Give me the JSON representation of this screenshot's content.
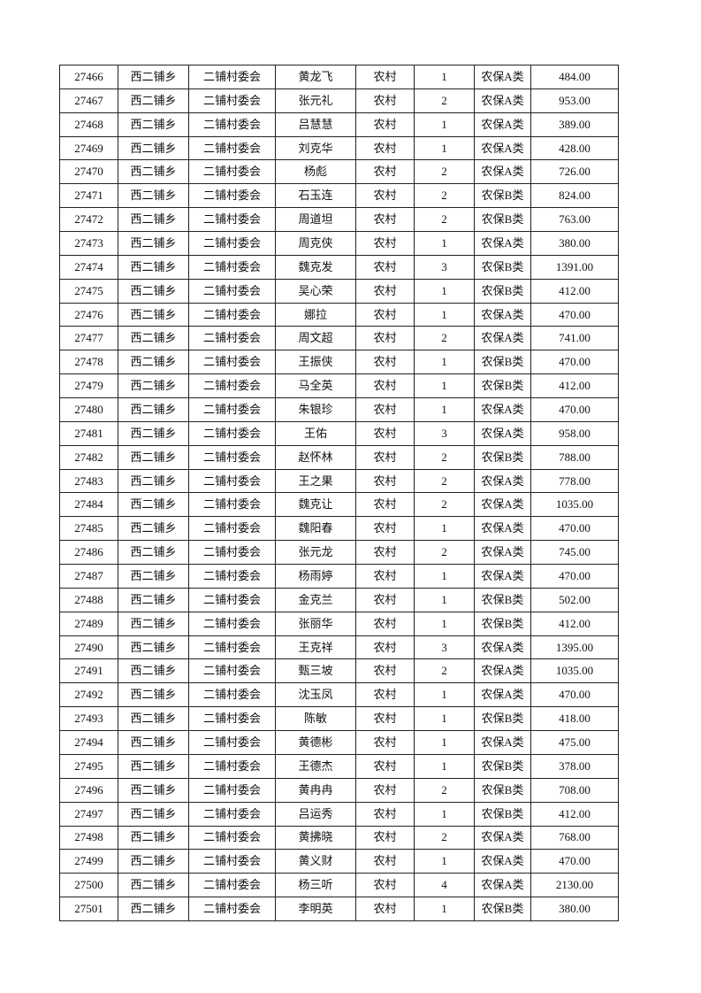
{
  "table": {
    "rows": [
      [
        "27466",
        "西二铺乡",
        "二铺村委会",
        "黄龙飞",
        "农村",
        "1",
        "农保A类",
        "484.00"
      ],
      [
        "27467",
        "西二铺乡",
        "二铺村委会",
        "张元礼",
        "农村",
        "2",
        "农保A类",
        "953.00"
      ],
      [
        "27468",
        "西二铺乡",
        "二铺村委会",
        "吕慧慧",
        "农村",
        "1",
        "农保A类",
        "389.00"
      ],
      [
        "27469",
        "西二铺乡",
        "二铺村委会",
        "刘克华",
        "农村",
        "1",
        "农保A类",
        "428.00"
      ],
      [
        "27470",
        "西二铺乡",
        "二铺村委会",
        "杨彪",
        "农村",
        "2",
        "农保A类",
        "726.00"
      ],
      [
        "27471",
        "西二铺乡",
        "二铺村委会",
        "石玉连",
        "农村",
        "2",
        "农保B类",
        "824.00"
      ],
      [
        "27472",
        "西二铺乡",
        "二铺村委会",
        "周道坦",
        "农村",
        "2",
        "农保B类",
        "763.00"
      ],
      [
        "27473",
        "西二铺乡",
        "二铺村委会",
        "周克侠",
        "农村",
        "1",
        "农保A类",
        "380.00"
      ],
      [
        "27474",
        "西二铺乡",
        "二铺村委会",
        "魏克发",
        "农村",
        "3",
        "农保B类",
        "1391.00"
      ],
      [
        "27475",
        "西二铺乡",
        "二铺村委会",
        "吴心荣",
        "农村",
        "1",
        "农保B类",
        "412.00"
      ],
      [
        "27476",
        "西二铺乡",
        "二铺村委会",
        "娜拉",
        "农村",
        "1",
        "农保A类",
        "470.00"
      ],
      [
        "27477",
        "西二铺乡",
        "二铺村委会",
        "周文超",
        "农村",
        "2",
        "农保A类",
        "741.00"
      ],
      [
        "27478",
        "西二铺乡",
        "二铺村委会",
        "王振侠",
        "农村",
        "1",
        "农保B类",
        "470.00"
      ],
      [
        "27479",
        "西二铺乡",
        "二铺村委会",
        "马全英",
        "农村",
        "1",
        "农保B类",
        "412.00"
      ],
      [
        "27480",
        "西二铺乡",
        "二铺村委会",
        "朱银珍",
        "农村",
        "1",
        "农保A类",
        "470.00"
      ],
      [
        "27481",
        "西二铺乡",
        "二铺村委会",
        "王佑",
        "农村",
        "3",
        "农保A类",
        "958.00"
      ],
      [
        "27482",
        "西二铺乡",
        "二铺村委会",
        "赵怀林",
        "农村",
        "2",
        "农保B类",
        "788.00"
      ],
      [
        "27483",
        "西二铺乡",
        "二铺村委会",
        "王之果",
        "农村",
        "2",
        "农保A类",
        "778.00"
      ],
      [
        "27484",
        "西二铺乡",
        "二铺村委会",
        "魏克让",
        "农村",
        "2",
        "农保A类",
        "1035.00"
      ],
      [
        "27485",
        "西二铺乡",
        "二铺村委会",
        "魏阳春",
        "农村",
        "1",
        "农保A类",
        "470.00"
      ],
      [
        "27486",
        "西二铺乡",
        "二铺村委会",
        "张元龙",
        "农村",
        "2",
        "农保A类",
        "745.00"
      ],
      [
        "27487",
        "西二铺乡",
        "二铺村委会",
        "杨雨婷",
        "农村",
        "1",
        "农保A类",
        "470.00"
      ],
      [
        "27488",
        "西二铺乡",
        "二铺村委会",
        "金克兰",
        "农村",
        "1",
        "农保B类",
        "502.00"
      ],
      [
        "27489",
        "西二铺乡",
        "二铺村委会",
        "张丽华",
        "农村",
        "1",
        "农保B类",
        "412.00"
      ],
      [
        "27490",
        "西二铺乡",
        "二铺村委会",
        "王克祥",
        "农村",
        "3",
        "农保A类",
        "1395.00"
      ],
      [
        "27491",
        "西二铺乡",
        "二铺村委会",
        "甄三坡",
        "农村",
        "2",
        "农保A类",
        "1035.00"
      ],
      [
        "27492",
        "西二铺乡",
        "二铺村委会",
        "沈玉凤",
        "农村",
        "1",
        "农保A类",
        "470.00"
      ],
      [
        "27493",
        "西二铺乡",
        "二铺村委会",
        "陈敏",
        "农村",
        "1",
        "农保B类",
        "418.00"
      ],
      [
        "27494",
        "西二铺乡",
        "二铺村委会",
        "黄德彬",
        "农村",
        "1",
        "农保A类",
        "475.00"
      ],
      [
        "27495",
        "西二铺乡",
        "二铺村委会",
        "王德杰",
        "农村",
        "1",
        "农保B类",
        "378.00"
      ],
      [
        "27496",
        "西二铺乡",
        "二铺村委会",
        "黄冉冉",
        "农村",
        "2",
        "农保B类",
        "708.00"
      ],
      [
        "27497",
        "西二铺乡",
        "二铺村委会",
        "吕运秀",
        "农村",
        "1",
        "农保B类",
        "412.00"
      ],
      [
        "27498",
        "西二铺乡",
        "二铺村委会",
        "黄拂晓",
        "农村",
        "2",
        "农保A类",
        "768.00"
      ],
      [
        "27499",
        "西二铺乡",
        "二铺村委会",
        "黄义财",
        "农村",
        "1",
        "农保A类",
        "470.00"
      ],
      [
        "27500",
        "西二铺乡",
        "二铺村委会",
        "杨三听",
        "农村",
        "4",
        "农保A类",
        "2130.00"
      ],
      [
        "27501",
        "西二铺乡",
        "二铺村委会",
        "李明英",
        "农村",
        "1",
        "农保B类",
        "380.00"
      ]
    ]
  }
}
